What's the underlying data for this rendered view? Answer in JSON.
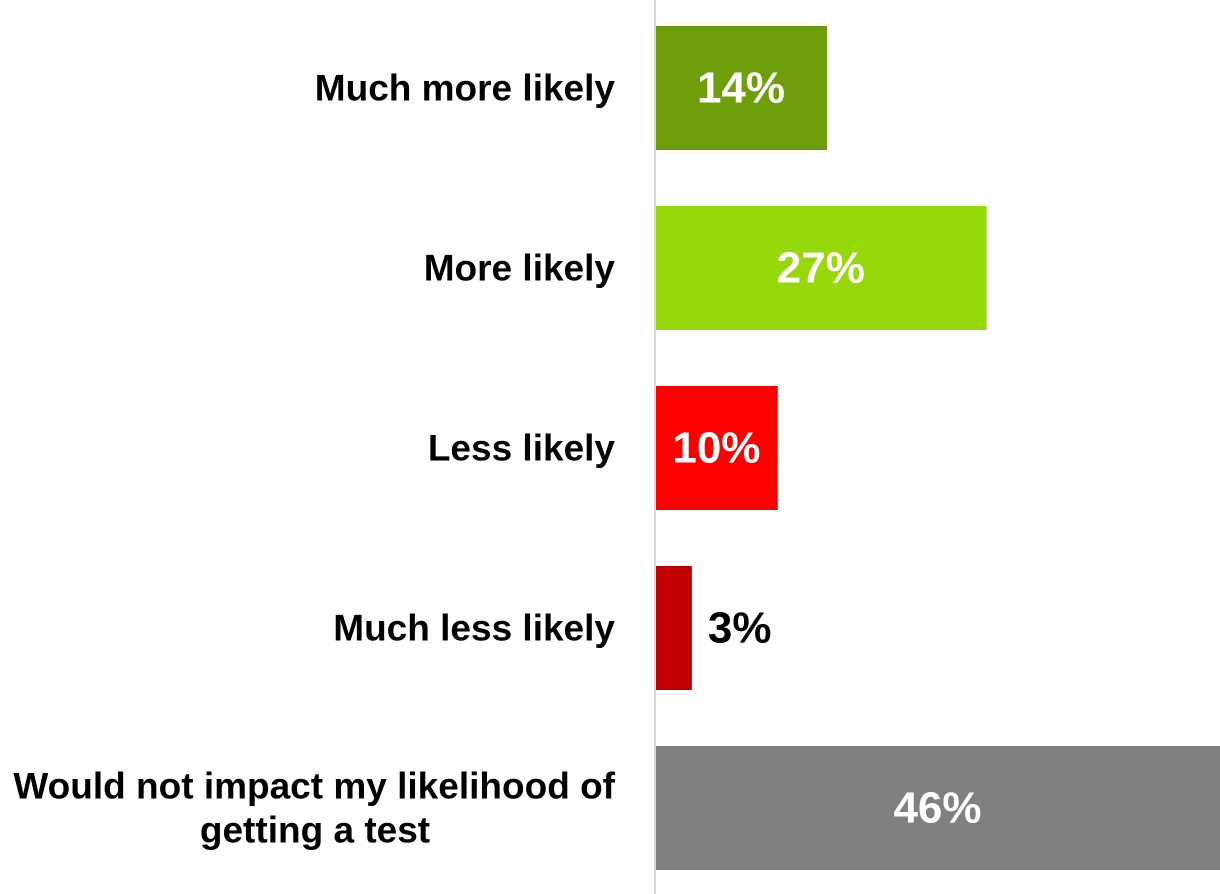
{
  "chart_data": {
    "type": "bar",
    "orientation": "horizontal",
    "categories": [
      "Much more likely",
      "More likely",
      "Less likely",
      "Much less likely",
      "Would not impact my likelihood of getting a test"
    ],
    "category_lines": [
      [
        "Much more likely"
      ],
      [
        "More likely"
      ],
      [
        "Less likely"
      ],
      [
        "Much less likely"
      ],
      [
        "Would not impact my likelihood of",
        "getting a test"
      ]
    ],
    "values": [
      14,
      27,
      10,
      3,
      46
    ],
    "value_labels": [
      "14%",
      "27%",
      "10%",
      "3%",
      "46%"
    ],
    "colors": [
      "#6e9f0b",
      "#96d80a",
      "#ff0000",
      "#c00000",
      "#808080"
    ],
    "label_colors": [
      "#ffffff",
      "#ffffff",
      "#ffffff",
      "#000000",
      "#ffffff"
    ],
    "label_position": [
      "inside",
      "inside",
      "inside",
      "outside",
      "inside"
    ],
    "axis_color": "#d9d9d9",
    "title": "",
    "xlabel": "",
    "ylabel": "",
    "xlim": [
      0,
      46
    ],
    "grid": false,
    "legend": "none"
  }
}
